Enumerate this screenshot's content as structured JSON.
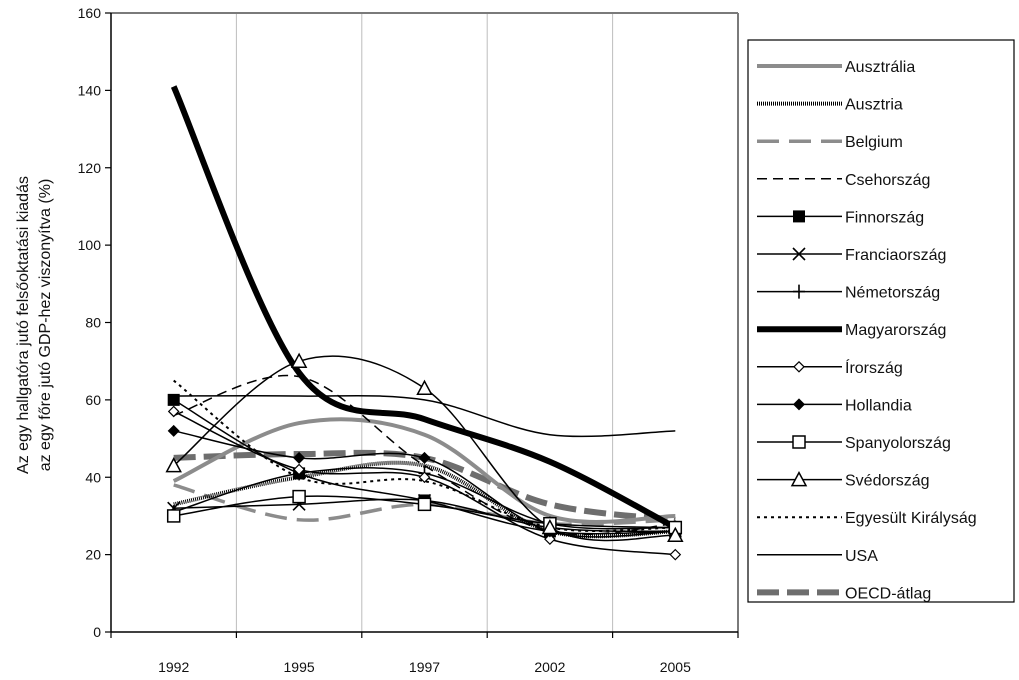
{
  "chart_data": {
    "type": "line",
    "x": [
      "1992",
      "1995",
      "1997",
      "2002",
      "2005"
    ],
    "ylabel_line1": "Az egy hallgatóra jutó felsőoktatási kiadás",
    "ylabel_line2": "az egy főre jutó GDP-hez viszonyítva (%)",
    "ylim": [
      0,
      160
    ],
    "yticks": [
      0,
      20,
      40,
      60,
      80,
      100,
      120,
      140,
      160
    ],
    "grid": "vertical",
    "legend": "right",
    "series": [
      {
        "name": "Ausztrália",
        "values": [
          39,
          54,
          51,
          30,
          30
        ]
      },
      {
        "name": "Ausztria",
        "values": [
          33,
          40,
          43,
          26,
          26
        ]
      },
      {
        "name": "Belgium",
        "values": [
          38,
          29,
          33,
          28,
          29
        ]
      },
      {
        "name": "Csehország",
        "values": [
          56,
          66,
          43,
          26,
          28
        ]
      },
      {
        "name": "Finnország",
        "values": [
          60,
          41,
          34,
          26,
          26
        ]
      },
      {
        "name": "Franciaország",
        "values": [
          32,
          33,
          34,
          27,
          26
        ]
      },
      {
        "name": "Németország",
        "values": [
          31,
          41,
          41,
          28,
          27
        ]
      },
      {
        "name": "Magyarország",
        "values": [
          141,
          67,
          55,
          44,
          27
        ]
      },
      {
        "name": "Írország",
        "values": [
          57,
          42,
          40,
          24,
          20
        ]
      },
      {
        "name": "Hollandia",
        "values": [
          52,
          45,
          45,
          26,
          26
        ]
      },
      {
        "name": "Spanyolország",
        "values": [
          30,
          35,
          33,
          28,
          27
        ]
      },
      {
        "name": "Svédország",
        "values": [
          43,
          70,
          63,
          27,
          25
        ]
      },
      {
        "name": "Egyesült Királyság",
        "values": [
          65,
          40,
          39,
          27,
          27
        ]
      },
      {
        "name": "USA",
        "values": [
          61,
          61,
          60,
          51,
          52
        ]
      },
      {
        "name": "OECD-átlag",
        "values": [
          45,
          46,
          45,
          33,
          29
        ]
      }
    ]
  }
}
